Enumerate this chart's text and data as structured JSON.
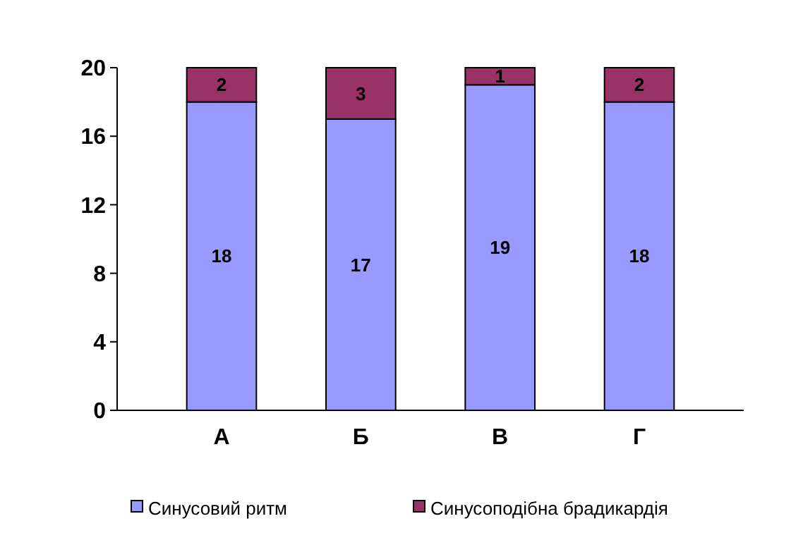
{
  "chart_data": {
    "type": "bar",
    "stacked": true,
    "categories": [
      "А",
      "Б",
      "В",
      "Г"
    ],
    "series": [
      {
        "name": "Синусовий ритм",
        "color": "#9999ff",
        "values": [
          18,
          17,
          19,
          18
        ]
      },
      {
        "name": "Синусоподібна брадикардія",
        "color": "#993366",
        "values": [
          2,
          3,
          1,
          2
        ]
      }
    ],
    "ylim": [
      0,
      20
    ],
    "yticks": [
      0,
      4,
      8,
      12,
      16,
      20
    ],
    "data_labels": true,
    "legend": "bottom"
  }
}
